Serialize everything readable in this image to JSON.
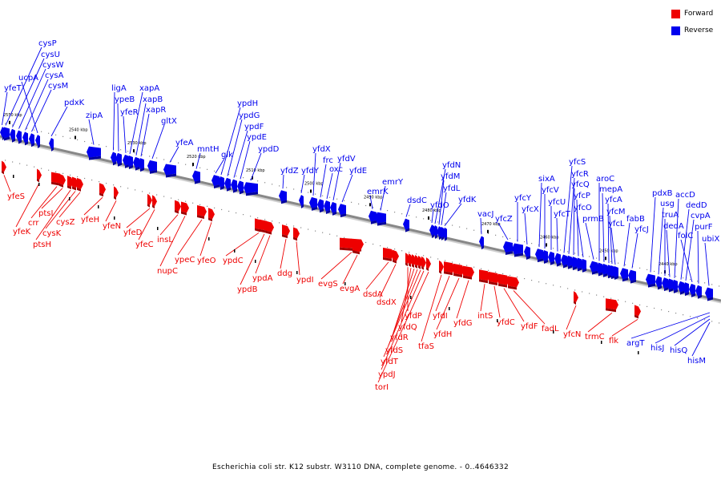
{
  "caption": "Escherichia coli str. K12 substr. W3110 DNA, complete genome. - 0..4646332",
  "legend": [
    {
      "label": "Forward",
      "color": "#ee0000"
    },
    {
      "label": "Reverse",
      "color": "#0000ee"
    }
  ],
  "colors": {
    "forward": "#ee0000",
    "reverse": "#0000ee",
    "axis": "#888888"
  },
  "kbp_ticks": [
    "2550 kbp",
    "2540 kbp",
    "2530 kbp",
    "2520 kbp",
    "2510 kbp",
    "2500 kbp",
    "2490 kbp",
    "2480 kbp",
    "2470 kbp",
    "2460 kbp",
    "2450 kbp",
    "2440 kbp"
  ],
  "genes_reverse": [
    "cysP",
    "cysU",
    "cysW",
    "cysA",
    "cysM",
    "ucpA",
    "yfeT",
    "pdxK",
    "zipA",
    "ligA",
    "ypeB",
    "yfeR",
    "xapA",
    "xapB",
    "xapR",
    "gltX",
    "yfeA",
    "mntH",
    "glk",
    "ypdH",
    "ypdG",
    "ypdF",
    "ypdE",
    "ypdD",
    "yfdZ",
    "yfdY",
    "yfdX",
    "frc",
    "oxc",
    "yfdV",
    "yfdE",
    "emrK",
    "emrY",
    "dsdC",
    "yfdO",
    "yfdN",
    "yfdM",
    "yfdL",
    "yfdK",
    "vacJ",
    "yfcZ",
    "yfcY",
    "yfcX",
    "sixA",
    "yfcV",
    "yfcU",
    "yfcT",
    "yfcS",
    "yfcR",
    "yfcQ",
    "yfcP",
    "yfcO",
    "prmB",
    "aroC",
    "mepA",
    "yfcA",
    "yfcM",
    "yfcL",
    "fabB",
    "yfcJ",
    "pdxB",
    "usg",
    "truA",
    "dedA",
    "accD",
    "dedD",
    "cvpA",
    "folC",
    "purF",
    "ubiX"
  ],
  "genes_forward": [
    "yfeS",
    "yfeK",
    "crr",
    "ptsI",
    "ptsH",
    "cysK",
    "cysZ",
    "yfeH",
    "yfeN",
    "yfeD",
    "yfeC",
    "insL",
    "nupC",
    "ypeC",
    "yfeO",
    "ypdC",
    "ypdB",
    "ypdA",
    "ddg",
    "ypdI",
    "evgS",
    "evgA",
    "dsdA",
    "dsdX",
    "yfdP",
    "yfdQ",
    "yfdR",
    "yfdS",
    "yfdT",
    "ypdJ",
    "torI",
    "tfaS",
    "yfdI",
    "yfdH",
    "yfdG",
    "intS",
    "yfdC",
    "yfdF",
    "fadL",
    "yfcN",
    "trmC",
    "flk",
    "argT",
    "hisJ",
    "hisQ",
    "hisM"
  ]
}
